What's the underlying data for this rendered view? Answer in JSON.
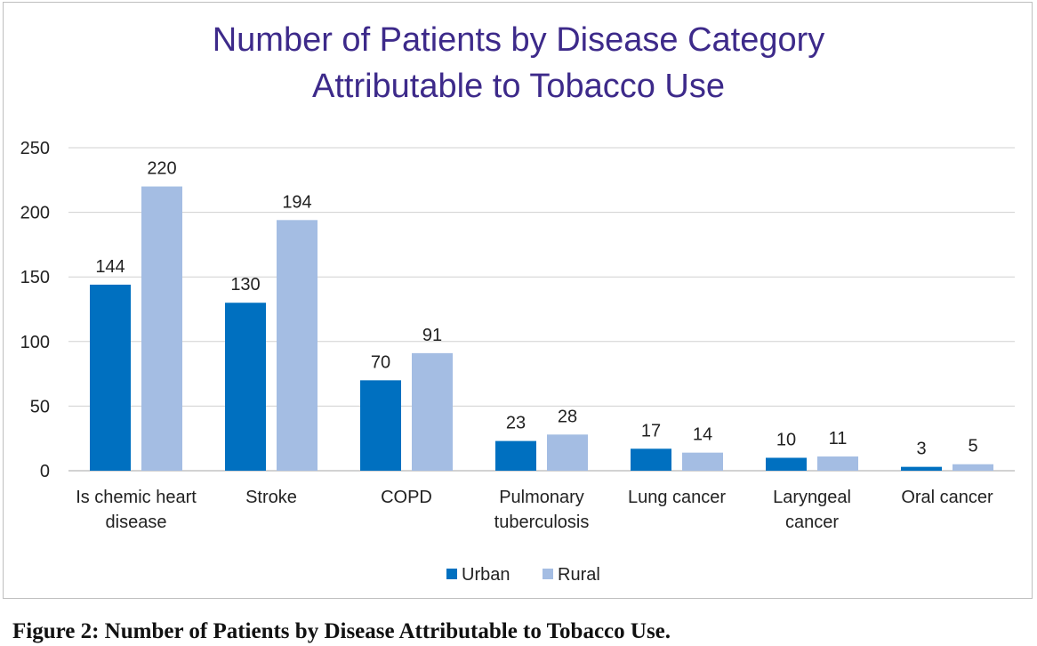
{
  "chart_data": {
    "type": "bar",
    "title": "Number of Patients by Disease Category\nAttributable to Tobacco Use",
    "categories": [
      "Is chemic heart\ndisease",
      "Stroke",
      "COPD",
      "Pulmonary\ntuberculosis",
      "Lung cancer",
      "Laryngeal\ncancer",
      "Oral cancer"
    ],
    "series": [
      {
        "name": "Urban",
        "color": "#0070c0",
        "values": [
          144,
          130,
          70,
          23,
          17,
          10,
          3
        ]
      },
      {
        "name": "Rural",
        "color": "#a4bde3",
        "values": [
          220,
          194,
          91,
          28,
          14,
          11,
          5
        ]
      }
    ],
    "ylim": [
      0,
      250
    ],
    "yticks": [
      0,
      50,
      100,
      150,
      200,
      250
    ],
    "grid": true,
    "legend_position": "bottom"
  },
  "caption": "Figure 2: Number of Patients by Disease Attributable to Tobacco Use."
}
